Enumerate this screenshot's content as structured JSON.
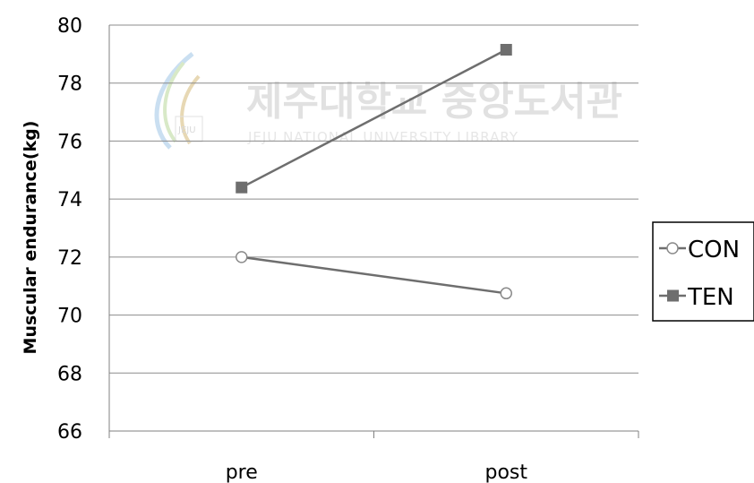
{
  "watermark": {
    "title_ko": "제주대학교 중앙도서관",
    "title_en": "JEJU NATIONAL UNIVERSITY LIBRARY",
    "logo_text": "JEJU"
  },
  "chart_data": {
    "type": "line",
    "categories": [
      "pre",
      "post"
    ],
    "series": [
      {
        "name": "CON",
        "values": [
          72.0,
          70.75
        ],
        "marker": "open-circle",
        "color": "#6e6e6e"
      },
      {
        "name": "TEN",
        "values": [
          74.4,
          79.15
        ],
        "marker": "filled-square",
        "color": "#6e6e6e"
      }
    ],
    "xlabel": "",
    "ylabel": "Muscular endurance(kg)",
    "ylim": [
      66,
      80
    ],
    "yticks": [
      66,
      68,
      70,
      72,
      74,
      76,
      78,
      80
    ],
    "grid": true,
    "legend": "right"
  }
}
